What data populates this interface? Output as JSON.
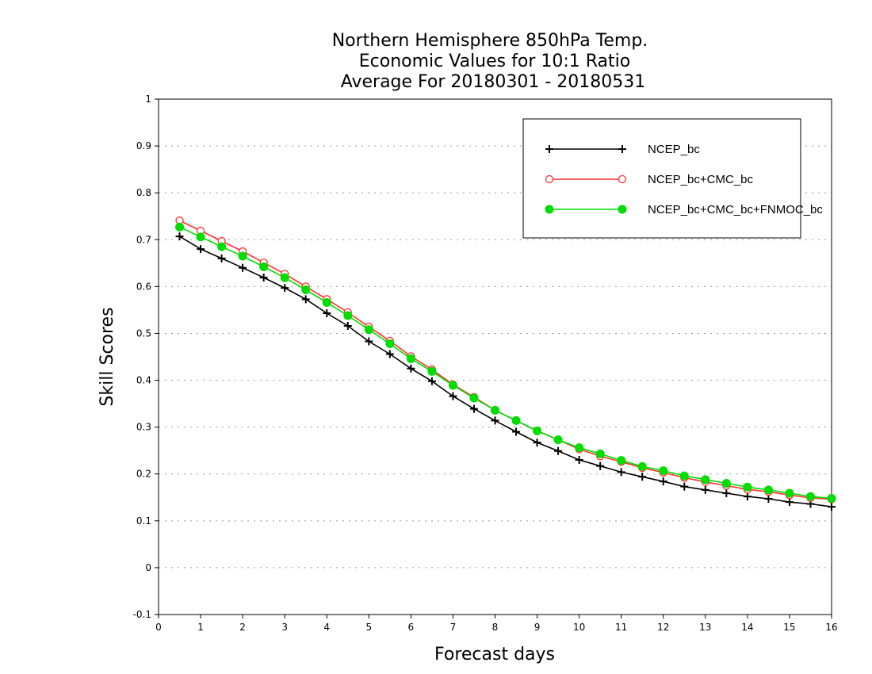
{
  "chart_data": {
    "type": "line",
    "title": [
      "Northern Hemisphere 850hPa Temp.",
      "Economic Values for 10:1 Ratio",
      "Average For 20180301 - 20180531"
    ],
    "xlabel": "Forecast days",
    "ylabel": "Skill Scores",
    "xlim": [
      0,
      16
    ],
    "ylim": [
      -0.1,
      1
    ],
    "xticks": [
      0,
      1,
      2,
      3,
      4,
      5,
      6,
      7,
      8,
      9,
      10,
      11,
      12,
      13,
      14,
      15,
      16
    ],
    "yticks": [
      -0.1,
      0,
      0.1,
      0.2,
      0.3,
      0.4,
      0.5,
      0.6,
      0.7,
      0.8,
      0.9,
      1
    ],
    "ytick_labels": [
      "-0.1",
      "0",
      "0.1",
      "0.2",
      "0.3",
      "0.4",
      "0.5",
      "0.6",
      "0.7",
      "0.8",
      "0.9",
      "1"
    ],
    "grid": true,
    "legend_position": "top-right",
    "x": [
      0.5,
      1,
      1.5,
      2,
      2.5,
      3,
      3.5,
      4,
      4.5,
      5,
      5.5,
      6,
      6.5,
      7,
      7.5,
      8,
      8.5,
      9,
      9.5,
      10,
      10.5,
      11,
      11.5,
      12,
      12.5,
      13,
      13.5,
      14,
      14.5,
      15,
      15.5,
      16
    ],
    "series": [
      {
        "name": "NCEP_bc",
        "color": "#000000",
        "marker": "plus",
        "values": [
          0.707,
          0.68,
          0.66,
          0.64,
          0.619,
          0.597,
          0.573,
          0.543,
          0.516,
          0.483,
          0.456,
          0.425,
          0.398,
          0.366,
          0.339,
          0.314,
          0.29,
          0.267,
          0.249,
          0.23,
          0.217,
          0.204,
          0.194,
          0.184,
          0.173,
          0.166,
          0.159,
          0.152,
          0.147,
          0.14,
          0.136,
          0.13
        ]
      },
      {
        "name": "NCEP_bc+CMC_bc",
        "color": "#ff3030",
        "marker": "open-circle",
        "values": [
          0.741,
          0.719,
          0.697,
          0.675,
          0.651,
          0.627,
          0.6,
          0.573,
          0.545,
          0.514,
          0.484,
          0.451,
          0.423,
          0.391,
          0.364,
          0.336,
          0.314,
          0.292,
          0.273,
          0.253,
          0.238,
          0.226,
          0.213,
          0.203,
          0.192,
          0.183,
          0.175,
          0.167,
          0.162,
          0.155,
          0.149,
          0.146
        ]
      },
      {
        "name": "NCEP_bc+CMC_bc+FNMOC_bc",
        "color": "#00dd00",
        "marker": "filled-circle",
        "values": [
          0.727,
          0.706,
          0.685,
          0.665,
          0.642,
          0.619,
          0.593,
          0.566,
          0.538,
          0.508,
          0.478,
          0.446,
          0.419,
          0.389,
          0.362,
          0.336,
          0.314,
          0.292,
          0.273,
          0.256,
          0.243,
          0.229,
          0.216,
          0.207,
          0.196,
          0.188,
          0.18,
          0.172,
          0.166,
          0.159,
          0.152,
          0.148
        ]
      }
    ]
  }
}
